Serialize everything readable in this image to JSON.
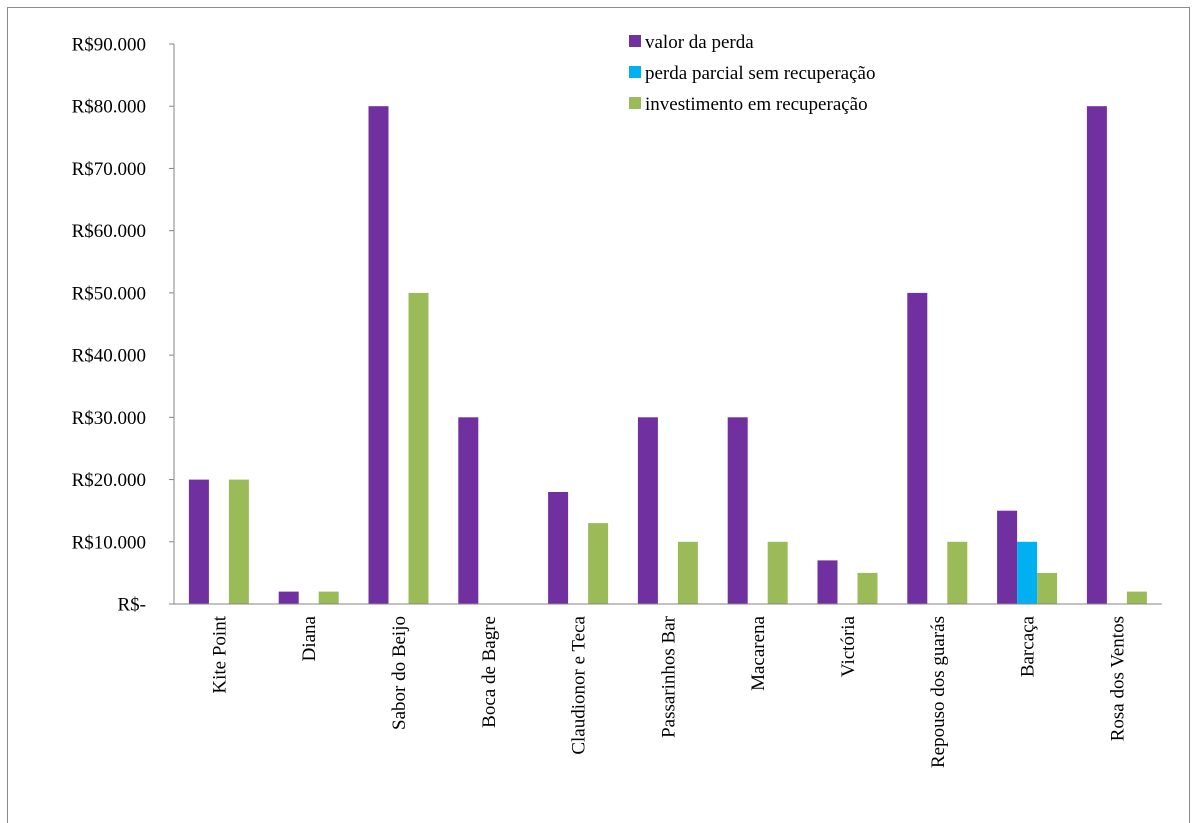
{
  "chart_data": {
    "type": "bar",
    "categories": [
      "Kite Point",
      "Diana",
      "Sabor do Beijo",
      "Boca de Bagre",
      "Claudionor e Teca",
      "Passarinhos Bar",
      "Macarena",
      "Victória",
      "Repouso dos guarás",
      "Barcaça",
      "Rosa dos Ventos"
    ],
    "series": [
      {
        "name": "valor da perda",
        "color": "#7030a0",
        "values": [
          20000,
          2000,
          80000,
          30000,
          18000,
          30000,
          30000,
          7000,
          50000,
          15000,
          80000
        ]
      },
      {
        "name": "perda parcial sem recuperação",
        "color": "#00b0f0",
        "values": [
          0,
          0,
          0,
          0,
          0,
          0,
          0,
          0,
          0,
          10000,
          0
        ]
      },
      {
        "name": "investimento em recuperação",
        "color": "#9bbb59",
        "values": [
          20000,
          2000,
          50000,
          0,
          13000,
          10000,
          10000,
          5000,
          10000,
          5000,
          2000
        ]
      }
    ],
    "ylim": [
      0,
      90000
    ],
    "yticks": [
      0,
      10000,
      20000,
      30000,
      40000,
      50000,
      60000,
      70000,
      80000,
      90000
    ],
    "ytick_labels": [
      "R$-",
      "R$10.000",
      "R$20.000",
      "R$30.000",
      "R$40.000",
      "R$50.000",
      "R$60.000",
      "R$70.000",
      "R$80.000",
      "R$90.000"
    ],
    "title": "",
    "xlabel": "",
    "ylabel": "",
    "grid": false,
    "legend_position": "top-right"
  }
}
